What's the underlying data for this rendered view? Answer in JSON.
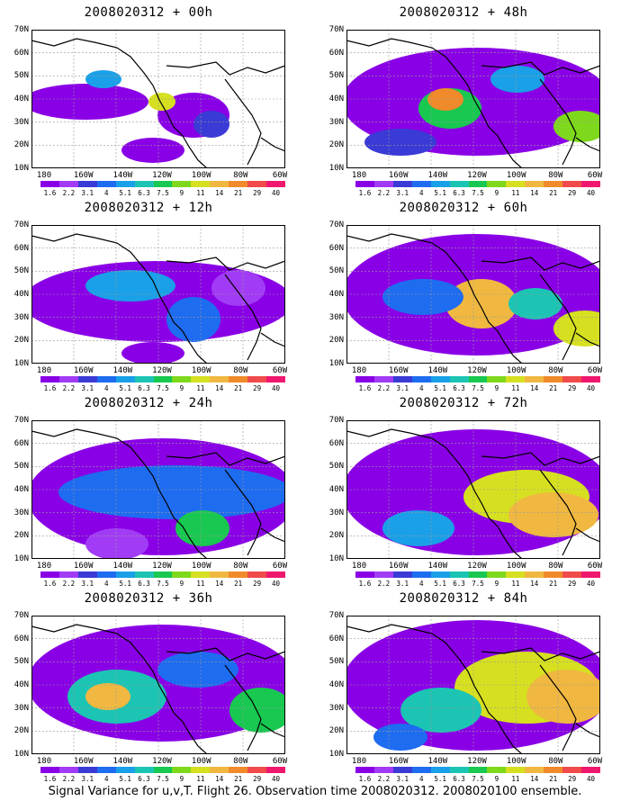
{
  "caption": "Signal Variance for u,v,T. Flight 26. Observation time 2008020312. 2008020100 ensemble.",
  "colorbar": {
    "levels": [
      "1.6",
      "2.2",
      "3.1",
      "4",
      "5.1",
      "6.3",
      "7.5",
      "9",
      "11",
      "14",
      "21",
      "29",
      "40"
    ],
    "colors": [
      "#8a00e6",
      "#a23bf5",
      "#3a3ad6",
      "#1e6cf0",
      "#1aa0e8",
      "#1cc4b4",
      "#18c850",
      "#7ed81c",
      "#d6e020",
      "#f0b840",
      "#f08a2a",
      "#f04a4a",
      "#f0186e"
    ]
  },
  "axes": {
    "x_ticks": [
      "180",
      "160W",
      "140W",
      "120W",
      "100W",
      "80W",
      "60W"
    ],
    "y_ticks": [
      "70N",
      "60N",
      "50N",
      "40N",
      "30N",
      "20N",
      "10N"
    ]
  },
  "chart_data": [
    {
      "type": "heatmap",
      "title": "2008020312 + 00h",
      "xlim": [
        "180",
        "60W"
      ],
      "ylim": [
        "10N",
        "70N"
      ]
    },
    {
      "type": "heatmap",
      "title": "2008020312 + 48h",
      "xlim": [
        "180",
        "60W"
      ],
      "ylim": [
        "10N",
        "70N"
      ]
    },
    {
      "type": "heatmap",
      "title": "2008020312 + 12h",
      "xlim": [
        "180",
        "60W"
      ],
      "ylim": [
        "10N",
        "70N"
      ]
    },
    {
      "type": "heatmap",
      "title": "2008020312 + 60h",
      "xlim": [
        "180",
        "60W"
      ],
      "ylim": [
        "10N",
        "70N"
      ]
    },
    {
      "type": "heatmap",
      "title": "2008020312 + 24h",
      "xlim": [
        "180",
        "60W"
      ],
      "ylim": [
        "10N",
        "70N"
      ]
    },
    {
      "type": "heatmap",
      "title": "2008020312 + 72h",
      "xlim": [
        "180",
        "60W"
      ],
      "ylim": [
        "10N",
        "70N"
      ]
    },
    {
      "type": "heatmap",
      "title": "2008020312 + 36h",
      "xlim": [
        "180",
        "60W"
      ],
      "ylim": [
        "10N",
        "70N"
      ]
    },
    {
      "type": "heatmap",
      "title": "2008020312 + 84h",
      "xlim": [
        "180",
        "60W"
      ],
      "ylim": [
        "10N",
        "70N"
      ]
    }
  ]
}
